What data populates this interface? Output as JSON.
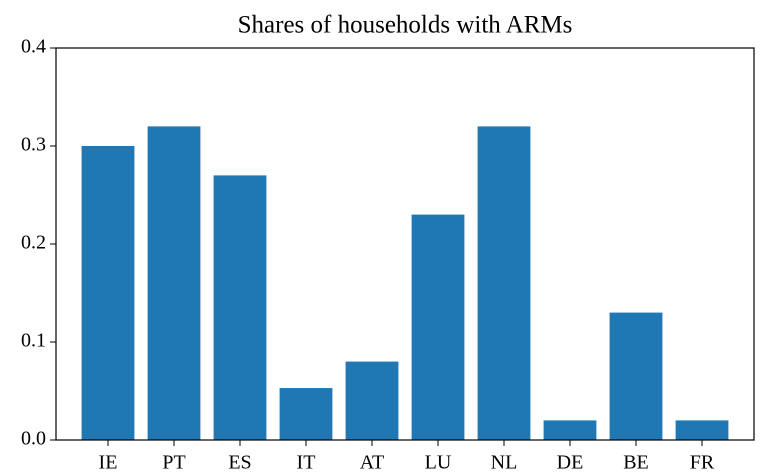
{
  "chart_data": {
    "type": "bar",
    "title": "Shares of households with ARMs",
    "categories": [
      "IE",
      "PT",
      "ES",
      "IT",
      "AT",
      "LU",
      "NL",
      "DE",
      "BE",
      "FR"
    ],
    "values": [
      0.3,
      0.32,
      0.27,
      0.053,
      0.08,
      0.23,
      0.32,
      0.02,
      0.13,
      0.02
    ],
    "color": "#1f77b4",
    "ylim": [
      0,
      0.4
    ],
    "yticks": [
      {
        "value": 0,
        "label": "0.0"
      },
      0.1,
      0.2,
      0.3,
      0.4
    ],
    "grid": false
  }
}
